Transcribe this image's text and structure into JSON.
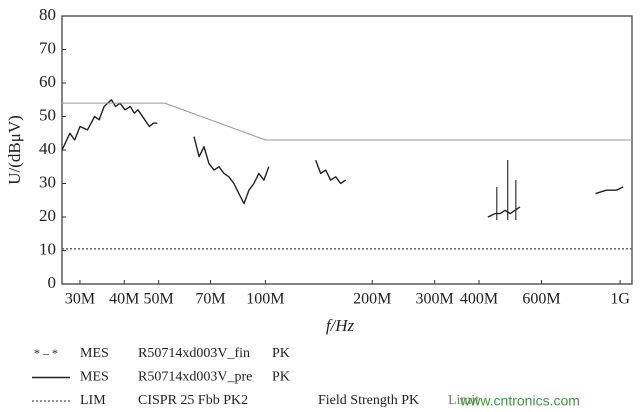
{
  "chart_data": {
    "type": "line",
    "y_label": "U/(dBμV)",
    "x_label": "f/Hz",
    "log_x": true,
    "xlim": [
      26700000,
      1080000000
    ],
    "xticks": [
      {
        "value": 30000000,
        "label": "30M"
      },
      {
        "value": 40000000,
        "label": "40M"
      },
      {
        "value": 50000000,
        "label": "50M"
      },
      {
        "value": 70000000,
        "label": "70M"
      },
      {
        "value": 100000000,
        "label": "100M"
      },
      {
        "value": 200000000,
        "label": "200M"
      },
      {
        "value": 300000000,
        "label": "300M"
      },
      {
        "value": 400000000,
        "label": "400M"
      },
      {
        "value": 600000000,
        "label": "600M"
      },
      {
        "value": 1000000000,
        "label": "1G"
      }
    ],
    "ylim": [
      0,
      80
    ],
    "yticks": [
      0,
      10,
      20,
      30,
      40,
      50,
      60,
      70,
      80
    ],
    "series": [
      {
        "kind": "MES",
        "name": "R50714xd003V_fin",
        "detector": "PK",
        "style": "marker",
        "color": "#333333",
        "x": [
          449000000,
          482000000,
          508000000
        ],
        "values": [
          29,
          37,
          31
        ]
      },
      {
        "kind": "MES",
        "name": "R50714xd003V_pre",
        "detector": "PK",
        "style": "line",
        "color": "#222222",
        "x": [
          26700000,
          28100000,
          29000000,
          30000000,
          31500000,
          33000000,
          34000000,
          35100000,
          36800000,
          37800000,
          38900000,
          40200000,
          41600000,
          42700000,
          43700000,
          45700000,
          47100000,
          48300000,
          49600000,
          null,
          62900000,
          65000000,
          67100000,
          69300000,
          71600000,
          74000000,
          76400000,
          78900000,
          81500000,
          84200000,
          87000000,
          89800000,
          92800000,
          95800000,
          99000000,
          102200000,
          null,
          138600000,
          143100000,
          147900000,
          152700000,
          157800000,
          163000000,
          168300000,
          null,
          423800000,
          444200000,
          458700000,
          473800000,
          489400000,
          505500000,
          522100000,
          null,
          852000000,
          914000000,
          976000000,
          1020000000
        ],
        "values": [
          40,
          45,
          43,
          47,
          46,
          50,
          49,
          53,
          55,
          53,
          54,
          52,
          53,
          51,
          52,
          49,
          47,
          48,
          48,
          null,
          44,
          38,
          41,
          36,
          34,
          35,
          33,
          32,
          30,
          27,
          24,
          28,
          30,
          33,
          31,
          35,
          null,
          37,
          33,
          34,
          31,
          32,
          30,
          31,
          null,
          20,
          21,
          21,
          22,
          21,
          22,
          23,
          null,
          27,
          28,
          28,
          29
        ]
      },
      {
        "kind": "LIM",
        "name": "CISPR 25 Fbb PK2",
        "detector": "Field Strength PK",
        "note": "Limit",
        "style": "dotted",
        "color": "#555555",
        "x": [
          26700000,
          1080000000
        ],
        "values": [
          10.5,
          10.5
        ]
      },
      {
        "style": "thin",
        "color": "#999999",
        "x": [
          26700000,
          52000000,
          100000000,
          1080000000
        ],
        "values": [
          54,
          54,
          43,
          43
        ]
      }
    ],
    "watermark": "www.cntronics.com"
  }
}
